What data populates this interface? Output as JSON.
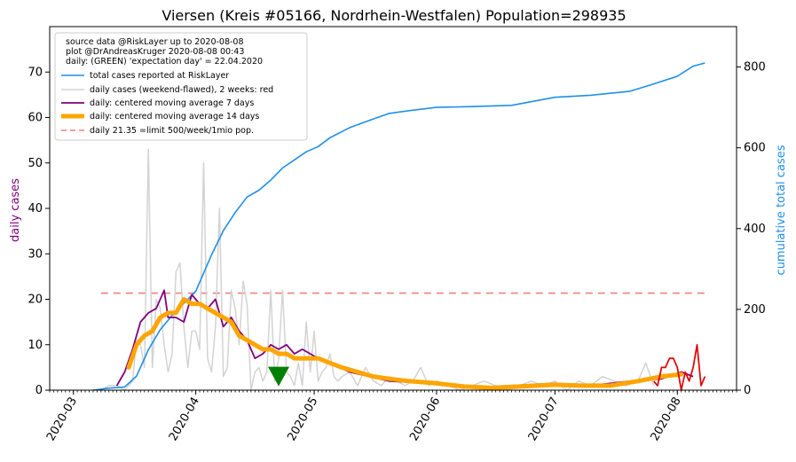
{
  "chart_data": {
    "type": "line",
    "title": "Viersen (Kreis #05166, Nordrhein-Westfalen) Population=298935",
    "ylabel_left": "daily cases",
    "ylabel_right": "cumulative total cases",
    "ylim_left": [
      0,
      80
    ],
    "ylim_right": [
      0,
      900
    ],
    "yticks_left": [
      0,
      10,
      20,
      30,
      40,
      50,
      60,
      70
    ],
    "yticks_right": [
      0,
      200,
      400,
      600,
      800
    ],
    "x_range": [
      "2020-02-24",
      "2020-08-16"
    ],
    "x_ticks": [
      "2020-03",
      "2020-04",
      "2020-05",
      "2020-06",
      "2020-07",
      "2020-08"
    ],
    "grid": false,
    "legend_position": "top-left",
    "notes": [
      "source data @RiskLayer up to 2020-08-08",
      "plot @DrAndreasKruger 2020-08-08 00:43",
      "daily: (GREEN) 'expectation day' = 22.04.2020"
    ],
    "legend": [
      "total cases reported at RiskLayer",
      "daily cases (weekend-flawed), 2 weeks: red",
      "daily: centered moving average 7 days",
      "daily: centered moving average 14 days",
      "daily 21.35 =limit 500/week/1mio pop."
    ],
    "colors": {
      "cumulative": "#1f8fe8",
      "daily": "#d3d3d3",
      "daily_recent": "#e00000",
      "ma7": "#800080",
      "ma14": "#ffa500",
      "limit": "#f08080",
      "marker": "#008000",
      "left_label": "#800080",
      "right_label": "#1f8fe8"
    },
    "limit_value": 21.35,
    "limit_x": [
      "2020-03-08",
      "2020-08-08"
    ],
    "expectation_day": {
      "date": "2020-04-22",
      "y": 3
    },
    "series": [
      {
        "name": "total cases reported at RiskLayer",
        "axis": "right",
        "x": [
          "2020-03-06",
          "2020-03-10",
          "2020-03-14",
          "2020-03-17",
          "2020-03-20",
          "2020-03-23",
          "2020-03-26",
          "2020-03-29",
          "2020-04-01",
          "2020-04-03",
          "2020-04-05",
          "2020-04-08",
          "2020-04-11",
          "2020-04-14",
          "2020-04-17",
          "2020-04-20",
          "2020-04-23",
          "2020-04-26",
          "2020-04-29",
          "2020-05-02",
          "2020-05-05",
          "2020-05-10",
          "2020-05-15",
          "2020-05-20",
          "2020-05-25",
          "2020-06-01",
          "2020-06-10",
          "2020-06-20",
          "2020-07-01",
          "2020-07-10",
          "2020-07-20",
          "2020-07-25",
          "2020-08-01",
          "2020-08-05",
          "2020-08-08"
        ],
        "y": [
          0,
          5,
          8,
          35,
          100,
          150,
          185,
          215,
          245,
          290,
          335,
          395,
          440,
          478,
          495,
          520,
          550,
          570,
          590,
          603,
          625,
          650,
          668,
          685,
          692,
          700,
          702,
          705,
          725,
          730,
          740,
          755,
          777,
          802,
          810
        ]
      },
      {
        "name": "daily cases (weekend-flawed), 2 weeks: red",
        "axis": "left",
        "x": [
          "2020-03-08",
          "2020-03-10",
          "2020-03-12",
          "2020-03-14",
          "2020-03-16",
          "2020-03-17",
          "2020-03-18",
          "2020-03-19",
          "2020-03-20",
          "2020-03-21",
          "2020-03-22",
          "2020-03-23",
          "2020-03-24",
          "2020-03-25",
          "2020-03-26",
          "2020-03-27",
          "2020-03-28",
          "2020-03-29",
          "2020-03-30",
          "2020-03-31",
          "2020-04-01",
          "2020-04-02",
          "2020-04-03",
          "2020-04-04",
          "2020-04-05",
          "2020-04-06",
          "2020-04-07",
          "2020-04-08",
          "2020-04-09",
          "2020-04-10",
          "2020-04-11",
          "2020-04-12",
          "2020-04-13",
          "2020-04-14",
          "2020-04-15",
          "2020-04-16",
          "2020-04-17",
          "2020-04-18",
          "2020-04-19",
          "2020-04-20",
          "2020-04-21",
          "2020-04-22",
          "2020-04-23",
          "2020-04-24",
          "2020-04-25",
          "2020-04-26",
          "2020-04-27",
          "2020-04-28",
          "2020-04-29",
          "2020-04-30",
          "2020-05-01",
          "2020-05-02",
          "2020-05-03",
          "2020-05-04",
          "2020-05-05",
          "2020-05-06",
          "2020-05-07",
          "2020-05-08",
          "2020-05-10",
          "2020-05-12",
          "2020-05-14",
          "2020-05-16",
          "2020-05-18",
          "2020-05-20",
          "2020-05-22",
          "2020-05-24",
          "2020-05-26",
          "2020-05-28",
          "2020-05-30",
          "2020-06-01",
          "2020-06-04",
          "2020-06-07",
          "2020-06-10",
          "2020-06-13",
          "2020-06-16",
          "2020-06-19",
          "2020-06-22",
          "2020-06-25",
          "2020-06-28",
          "2020-07-01",
          "2020-07-04",
          "2020-07-07",
          "2020-07-10",
          "2020-07-13",
          "2020-07-16",
          "2020-07-19",
          "2020-07-22",
          "2020-07-24",
          "2020-07-26"
        ],
        "y": [
          0,
          1,
          1,
          0,
          2,
          11,
          10,
          5,
          53,
          5,
          20,
          18,
          10,
          4,
          8,
          26,
          28,
          14,
          5,
          13,
          13,
          9,
          50,
          7,
          4,
          14,
          40,
          3,
          5,
          22,
          18,
          10,
          24,
          19,
          0,
          4,
          5,
          2,
          4,
          22,
          2,
          7,
          22,
          4,
          3,
          1,
          6,
          1,
          15,
          4,
          13,
          2,
          4,
          5,
          8,
          3,
          2,
          3,
          4,
          1,
          5,
          2,
          1,
          3,
          2,
          1,
          2,
          5,
          1,
          2,
          1,
          0,
          1,
          2,
          1,
          0,
          1,
          2,
          1,
          2,
          0,
          2,
          1,
          3,
          2,
          1,
          2,
          6,
          1
        ]
      },
      {
        "name": "daily cases, last 2 weeks",
        "axis": "left",
        "x": [
          "2020-07-26",
          "2020-07-27",
          "2020-07-28",
          "2020-07-29",
          "2020-07-30",
          "2020-07-31",
          "2020-08-01",
          "2020-08-02",
          "2020-08-03",
          "2020-08-04",
          "2020-08-05",
          "2020-08-06",
          "2020-08-07",
          "2020-08-08"
        ],
        "y": [
          2,
          1,
          5,
          5,
          7,
          7,
          5,
          0,
          4,
          2,
          5,
          10,
          1,
          3
        ]
      },
      {
        "name": "daily: centered moving average 7 days",
        "axis": "left",
        "x": [
          "2020-03-12",
          "2020-03-14",
          "2020-03-16",
          "2020-03-18",
          "2020-03-20",
          "2020-03-22",
          "2020-03-24",
          "2020-03-25",
          "2020-03-27",
          "2020-03-29",
          "2020-03-31",
          "2020-04-02",
          "2020-04-04",
          "2020-04-06",
          "2020-04-08",
          "2020-04-10",
          "2020-04-12",
          "2020-04-14",
          "2020-04-16",
          "2020-04-18",
          "2020-04-20",
          "2020-04-22",
          "2020-04-24",
          "2020-04-26",
          "2020-04-28",
          "2020-04-30",
          "2020-05-02",
          "2020-05-05",
          "2020-05-10",
          "2020-05-15",
          "2020-05-20",
          "2020-06-01",
          "2020-06-10",
          "2020-06-20",
          "2020-07-01",
          "2020-07-10",
          "2020-07-20",
          "2020-07-28",
          "2020-08-02",
          "2020-08-05"
        ],
        "y": [
          1,
          4,
          9,
          15,
          17,
          18,
          22,
          16,
          16,
          15,
          21,
          19,
          18,
          20,
          14,
          16,
          13,
          11,
          7,
          8,
          10,
          9,
          10,
          8,
          9,
          8,
          7,
          6,
          4,
          3,
          2,
          1.5,
          0.5,
          1,
          1.5,
          1,
          2,
          2.5,
          4,
          3
        ]
      },
      {
        "name": "daily: centered moving average 14 days",
        "axis": "left",
        "x": [
          "2020-03-15",
          "2020-03-17",
          "2020-03-19",
          "2020-03-21",
          "2020-03-23",
          "2020-03-25",
          "2020-03-27",
          "2020-03-29",
          "2020-03-31",
          "2020-04-02",
          "2020-04-04",
          "2020-04-06",
          "2020-04-08",
          "2020-04-10",
          "2020-04-12",
          "2020-04-14",
          "2020-04-16",
          "2020-04-18",
          "2020-04-20",
          "2020-04-22",
          "2020-04-24",
          "2020-04-26",
          "2020-04-28",
          "2020-04-30",
          "2020-05-02",
          "2020-05-05",
          "2020-05-08",
          "2020-05-12",
          "2020-05-16",
          "2020-05-20",
          "2020-05-25",
          "2020-06-01",
          "2020-06-08",
          "2020-06-15",
          "2020-06-22",
          "2020-07-01",
          "2020-07-08",
          "2020-07-15",
          "2020-07-22",
          "2020-07-28",
          "2020-08-02"
        ],
        "y": [
          5,
          10,
          12,
          13,
          16,
          17,
          17,
          20,
          19,
          19,
          18,
          17,
          16,
          15,
          12,
          11,
          10,
          9,
          9,
          8,
          8,
          7,
          7,
          7,
          7,
          6,
          5,
          4,
          3,
          2.5,
          2,
          1.5,
          0.8,
          0.5,
          0.8,
          1.2,
          1,
          1,
          2,
          3,
          3.5
        ]
      }
    ]
  }
}
